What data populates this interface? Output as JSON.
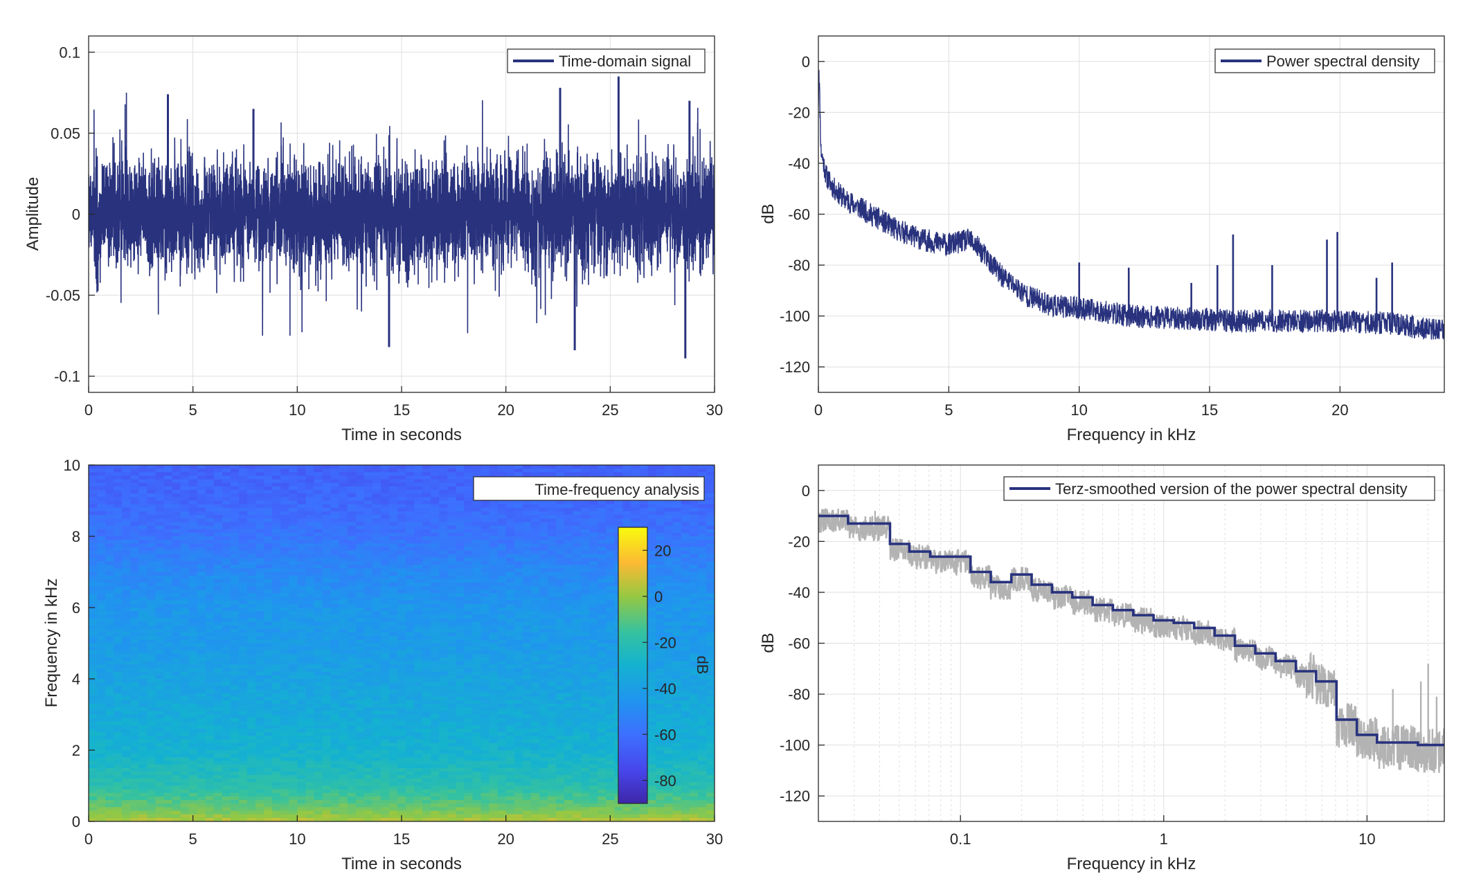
{
  "figure": {
    "colors": {
      "line": "#28327D",
      "grid": "#DFDFDF",
      "axis": "#262626",
      "raw": "#B3B3B3",
      "background": "#FFFFFF"
    }
  },
  "chart_data": [
    {
      "id": "time-signal",
      "type": "line",
      "title": "",
      "xlabel": "Time in seconds",
      "ylabel": "Amplitude",
      "xlim": [
        0,
        30
      ],
      "ylim": [
        -0.11,
        0.11
      ],
      "xticks": [
        0,
        5,
        10,
        15,
        20,
        25,
        30
      ],
      "xticklabels": [
        "0",
        "5",
        "10",
        "15",
        "20",
        "25",
        "30"
      ],
      "yticks": [
        -0.1,
        -0.05,
        0,
        0.05,
        0.1
      ],
      "yticklabels": [
        "-0.1",
        "-0.05",
        "0",
        "0.05",
        "0.1"
      ],
      "grid": true,
      "legend": {
        "position": "top-right",
        "entries": [
          "Time-domain signal"
        ]
      },
      "series": [
        {
          "name": "Time-domain signal",
          "color": "#28327D",
          "description": "dense noise centered at 0, typical envelope about ±0.04, peaks up to about +0.085 and down to about -0.09",
          "peaks": [
            {
              "x": 3.8,
              "y": 0.074
            },
            {
              "x": 7.9,
              "y": 0.065
            },
            {
              "x": 14.4,
              "y": -0.082
            },
            {
              "x": 22.6,
              "y": 0.078
            },
            {
              "x": 25.4,
              "y": 0.085
            },
            {
              "x": 23.3,
              "y": -0.084
            },
            {
              "x": 28.6,
              "y": -0.089
            },
            {
              "x": 28.8,
              "y": 0.07
            }
          ]
        }
      ]
    },
    {
      "id": "psd",
      "type": "line",
      "title": "",
      "xlabel": "Frequency in kHz",
      "ylabel": "dB",
      "xlim": [
        0,
        24
      ],
      "ylim": [
        -130,
        10
      ],
      "xticks": [
        0,
        5,
        10,
        15,
        20
      ],
      "xticklabels": [
        "0",
        "5",
        "10",
        "15",
        "20"
      ],
      "yticks": [
        -120,
        -100,
        -80,
        -60,
        -40,
        -20,
        0
      ],
      "yticklabels": [
        "-120",
        "-100",
        "-80",
        "-60",
        "-40",
        "-20",
        "0"
      ],
      "grid": true,
      "legend": {
        "position": "top-right",
        "entries": [
          "Power spectral density"
        ]
      },
      "series": [
        {
          "name": "Power spectral density",
          "color": "#28327D",
          "x": [
            0,
            0.02,
            0.1,
            0.3,
            0.6,
            1.0,
            2.0,
            3.0,
            4.0,
            5.0,
            5.8,
            6.2,
            7.0,
            8.0,
            9.0,
            10.0,
            12.0,
            14.0,
            16.0,
            18.0,
            20.0,
            22.0,
            24.0
          ],
          "y": [
            -15,
            -2,
            -35,
            -45,
            -50,
            -54,
            -60,
            -66,
            -70,
            -72,
            -70,
            -74,
            -84,
            -92,
            -96,
            -97,
            -100,
            -101,
            -102,
            -102,
            -102,
            -103,
            -106
          ],
          "spikes": [
            {
              "x": 10.0,
              "y": -79
            },
            {
              "x": 11.9,
              "y": -81
            },
            {
              "x": 14.3,
              "y": -87
            },
            {
              "x": 15.3,
              "y": -80
            },
            {
              "x": 15.9,
              "y": -68
            },
            {
              "x": 17.4,
              "y": -80
            },
            {
              "x": 19.5,
              "y": -70
            },
            {
              "x": 19.9,
              "y": -67
            },
            {
              "x": 21.4,
              "y": -85
            },
            {
              "x": 22.0,
              "y": -79
            }
          ]
        }
      ]
    },
    {
      "id": "spectrogram",
      "type": "heatmap",
      "title": "",
      "xlabel": "Time in seconds",
      "ylabel": "Frequency in kHz",
      "xlim": [
        0,
        30
      ],
      "ylim": [
        0,
        10
      ],
      "xticks": [
        0,
        5,
        10,
        15,
        20,
        25,
        30
      ],
      "xticklabels": [
        "0",
        "5",
        "10",
        "15",
        "20",
        "25",
        "30"
      ],
      "yticks": [
        0,
        2,
        4,
        6,
        8,
        10
      ],
      "yticklabels": [
        "0",
        "2",
        "4",
        "6",
        "8",
        "10"
      ],
      "legend": {
        "position": "top-right",
        "entries": [
          "Time-frequency analysis"
        ]
      },
      "colorbar": {
        "label": "dB",
        "clim": [
          -90,
          30
        ],
        "ticks": [
          -80,
          -60,
          -40,
          -20,
          0,
          20
        ],
        "ticklabels": [
          "-80",
          "-60",
          "-40",
          "-20",
          "0",
          "20"
        ]
      },
      "level_by_frequency": {
        "frequency_khz": [
          0,
          0.3,
          1,
          2,
          3,
          4,
          5,
          6,
          7,
          8,
          9,
          10
        ],
        "db": [
          5,
          -5,
          -20,
          -30,
          -34,
          -38,
          -42,
          -44,
          -50,
          -58,
          -63,
          -65
        ]
      }
    },
    {
      "id": "terz-psd",
      "type": "line",
      "title": "",
      "xlabel": "Frequency in kHz",
      "ylabel": "dB",
      "xscale": "log",
      "xlim": [
        0.02,
        24
      ],
      "ylim": [
        -130,
        10
      ],
      "xticks": [
        0.1,
        1,
        10
      ],
      "xticklabels": [
        "0.1",
        "1",
        "10"
      ],
      "yticks": [
        -120,
        -100,
        -80,
        -60,
        -40,
        -20,
        0
      ],
      "yticklabels": [
        "-120",
        "-100",
        "-80",
        "-60",
        "-40",
        "-20",
        "0"
      ],
      "grid": true,
      "legend": {
        "position": "top-right",
        "entries": [
          "Terz-smoothed version of the power spectral density"
        ]
      },
      "series": [
        {
          "name": "Terz-smoothed version of the power spectral density",
          "color": "#28327D",
          "step_edges_khz": [
            0.02,
            0.028,
            0.045,
            0.056,
            0.071,
            0.089,
            0.112,
            0.141,
            0.178,
            0.224,
            0.282,
            0.355,
            0.447,
            0.562,
            0.708,
            0.891,
            1.12,
            1.41,
            1.78,
            2.24,
            2.82,
            3.55,
            4.47,
            5.62,
            7.08,
            8.91,
            11.2,
            14.1,
            17.8,
            24
          ],
          "step_levels_db": [
            -10,
            -13,
            -21,
            -24,
            -26,
            -26,
            -32,
            -36,
            -33,
            -37,
            -40,
            -42,
            -45,
            -47,
            -49,
            -51,
            -52,
            -54,
            -57,
            -61,
            -64,
            -67,
            -71,
            -75,
            -90,
            -96,
            -99,
            -99,
            -100
          ]
        },
        {
          "name": "",
          "color": "#B3B3B3",
          "description": "unsmoothed power spectral density plotted on the log frequency axis",
          "spikes": [
            {
              "x": 0.038,
              "y": -8
            },
            {
              "x": 13.4,
              "y": -78
            },
            {
              "x": 18.4,
              "y": -75
            },
            {
              "x": 20.0,
              "y": -68
            },
            {
              "x": 22.0,
              "y": -81
            }
          ]
        }
      ]
    }
  ]
}
